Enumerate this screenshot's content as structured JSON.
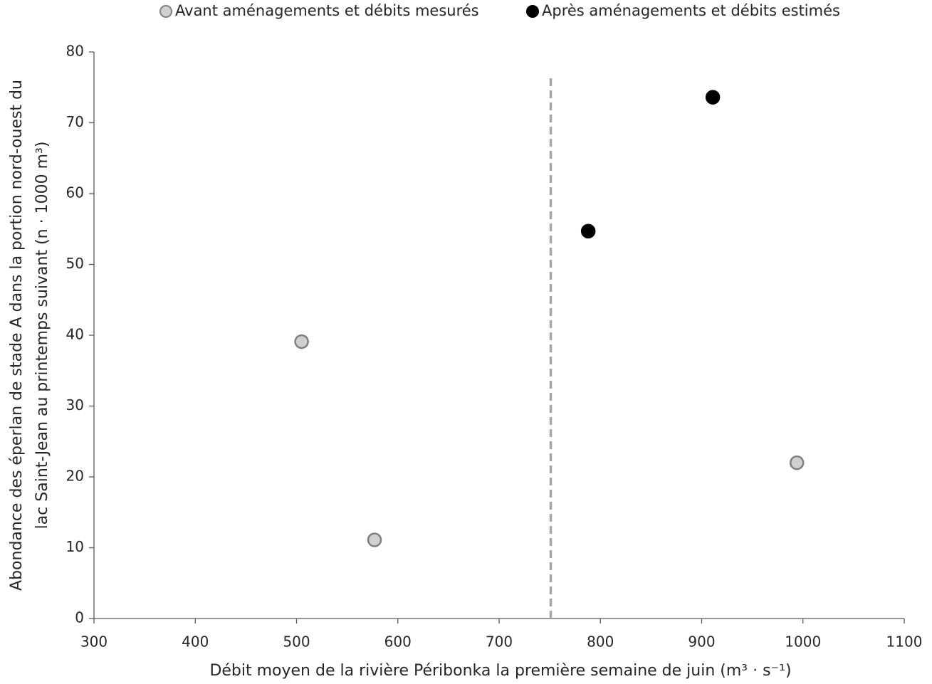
{
  "chart_data": {
    "type": "scatter",
    "xlabel": "Débit moyen de la rivière Péribonka la première semaine de juin (m³ · s⁻¹)",
    "ylabel": [
      "Abondance des éperlan de stade A dans la portion nord-ouest du",
      "lac Saint-Jean au printemps suivant (n · 1000 m³)"
    ],
    "series": [
      {
        "name": "Avant aménagements et débits mesurés",
        "color": "#d0d0d0",
        "edgecolor": "#7f7f7f",
        "x": [
          505,
          577,
          994
        ],
        "values": [
          39.1,
          11.1,
          22.0
        ]
      },
      {
        "name": "Après aménagements et débits estimés",
        "color": "#000000",
        "edgecolor": "#000000",
        "x": [
          788,
          911
        ],
        "values": [
          54.7,
          73.6
        ]
      }
    ],
    "reference_line": {
      "x": 751,
      "y": [
        0,
        76.6
      ],
      "color": "#a6a6a6"
    },
    "xlim": [
      300,
      1100
    ],
    "xticks": [
      300,
      400,
      500,
      600,
      700,
      800,
      900,
      1000,
      1100
    ],
    "ylim": [
      0,
      80
    ],
    "yticks": [
      0,
      10,
      20,
      30,
      40,
      50,
      60,
      70,
      80
    ],
    "grid": false,
    "legend": "top"
  }
}
